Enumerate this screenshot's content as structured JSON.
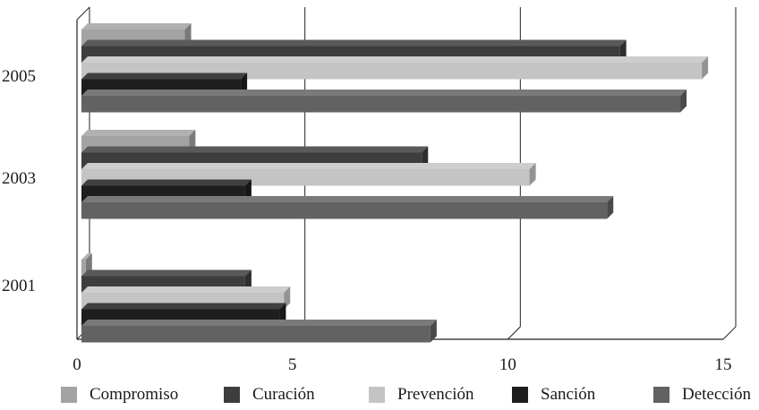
{
  "chart_data": {
    "type": "bar",
    "orientation": "horizontal",
    "style": "3d",
    "title": "",
    "xlabel": "",
    "ylabel": "",
    "categories": [
      "2001",
      "2003",
      "2005"
    ],
    "xlim": [
      0,
      15
    ],
    "x_ticks": [
      "0",
      "5",
      "10",
      "15"
    ],
    "grid": true,
    "legend_position": "bottom",
    "series": [
      {
        "name": "Compromiso",
        "color": "#a3a3a3",
        "values": [
          0.1,
          2.5,
          2.4
        ]
      },
      {
        "name": "Curación",
        "color": "#3d3d3d",
        "values": [
          3.8,
          7.9,
          12.5
        ]
      },
      {
        "name": "Prevención",
        "color": "#c4c4c4",
        "values": [
          4.7,
          10.4,
          14.4
        ]
      },
      {
        "name": "Sanción",
        "color": "#1e1e1e",
        "values": [
          4.6,
          3.8,
          3.7
        ]
      },
      {
        "name": "Detección",
        "color": "#626262",
        "values": [
          8.1,
          12.2,
          13.9
        ]
      }
    ]
  }
}
